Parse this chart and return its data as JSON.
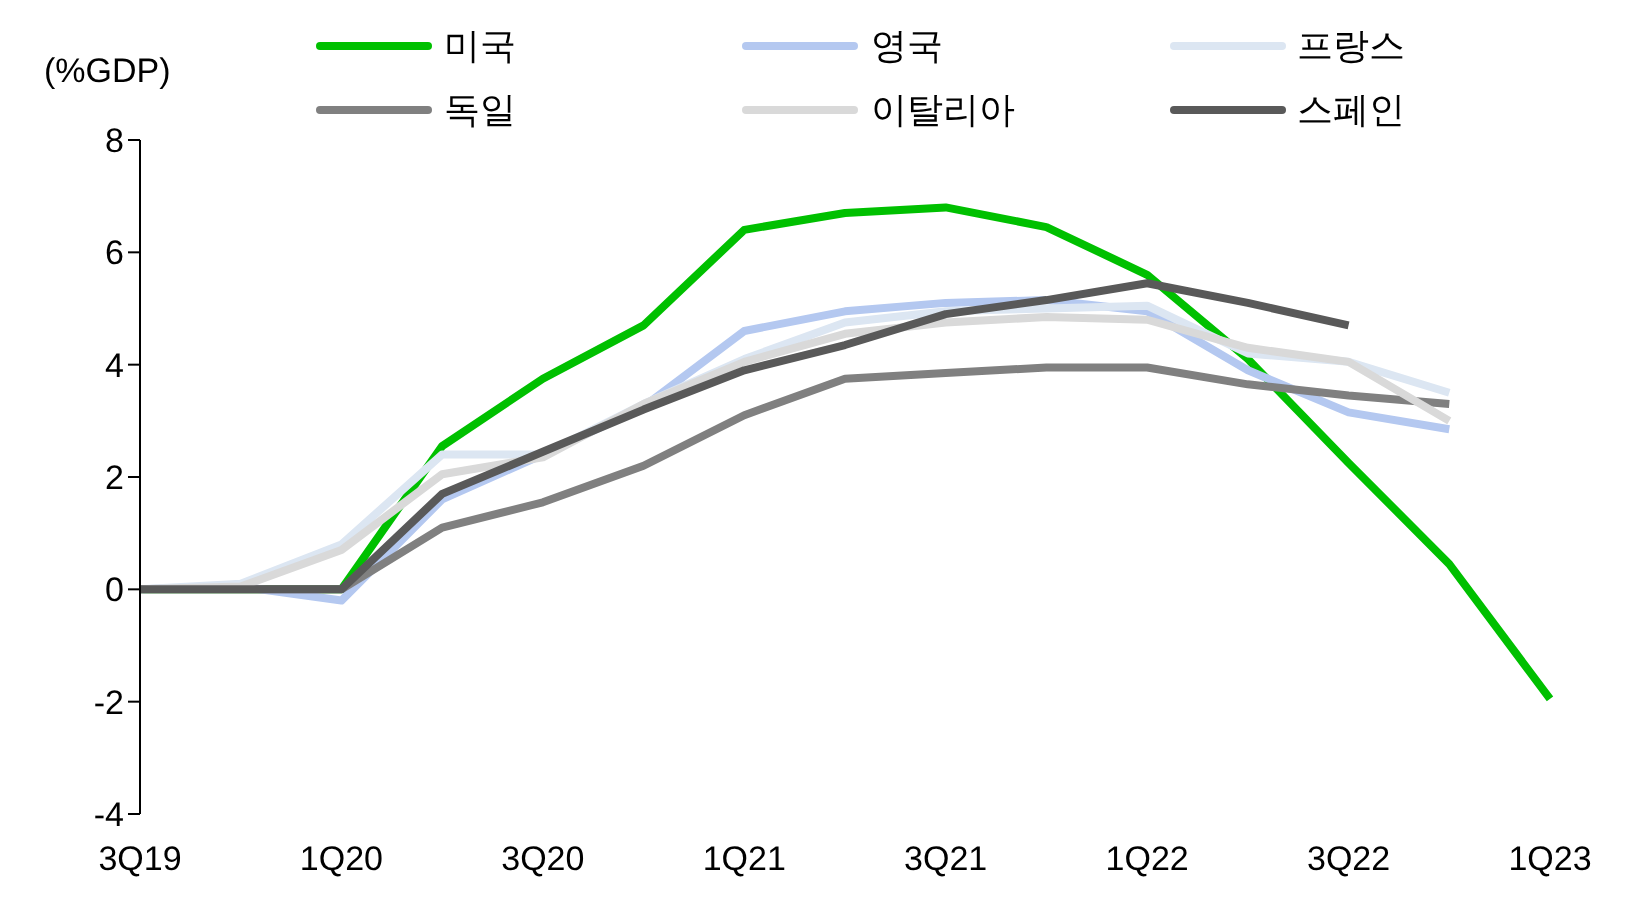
{
  "chart_data": {
    "type": "line",
    "ylabel": "(%GDP)",
    "categories": [
      "3Q19",
      null,
      "1Q20",
      null,
      "3Q20",
      null,
      "1Q21",
      null,
      "3Q21",
      null,
      "1Q22",
      null,
      "3Q22",
      null,
      "1Q23"
    ],
    "series": [
      {
        "name": "미국",
        "color": "#00c000",
        "values": [
          0,
          0,
          0,
          2.55,
          3.75,
          4.7,
          6.4,
          6.7,
          6.8,
          6.45,
          5.6,
          4.1,
          2.25,
          0.45,
          -1.95
        ]
      },
      {
        "name": "영국",
        "color": "#b4c8f0",
        "values": [
          0,
          0.05,
          -0.2,
          1.6,
          2.4,
          3.25,
          4.6,
          4.95,
          5.1,
          5.15,
          4.95,
          3.9,
          3.15,
          2.85,
          null
        ]
      },
      {
        "name": "프랑스",
        "color": "#dce6f2",
        "values": [
          0,
          0.1,
          0.8,
          2.4,
          2.4,
          3.3,
          4.1,
          4.75,
          4.95,
          5.0,
          5.05,
          4.2,
          4.05,
          3.5,
          null
        ]
      },
      {
        "name": "독일",
        "color": "#808080",
        "values": [
          0,
          0,
          0,
          1.1,
          1.55,
          2.2,
          3.1,
          3.75,
          3.85,
          3.95,
          3.95,
          3.65,
          3.45,
          3.3,
          null
        ]
      },
      {
        "name": "이탈리아",
        "color": "#d9d9d9",
        "values": [
          0,
          0.05,
          0.7,
          2.05,
          2.35,
          3.3,
          4.05,
          4.55,
          4.75,
          4.85,
          4.8,
          4.3,
          4.05,
          3.0,
          null
        ]
      },
      {
        "name": "스페인",
        "color": "#595959",
        "values": [
          0,
          0,
          0,
          1.7,
          2.45,
          3.2,
          3.9,
          4.35,
          4.9,
          5.15,
          5.45,
          5.1,
          4.7,
          null,
          null
        ]
      }
    ],
    "ylim": [
      -4,
      8
    ],
    "yticks": [
      -4,
      -2,
      0,
      2,
      4,
      6,
      8
    ],
    "grid": false,
    "legend": "top",
    "marker": "none",
    "line_style": "solid"
  }
}
